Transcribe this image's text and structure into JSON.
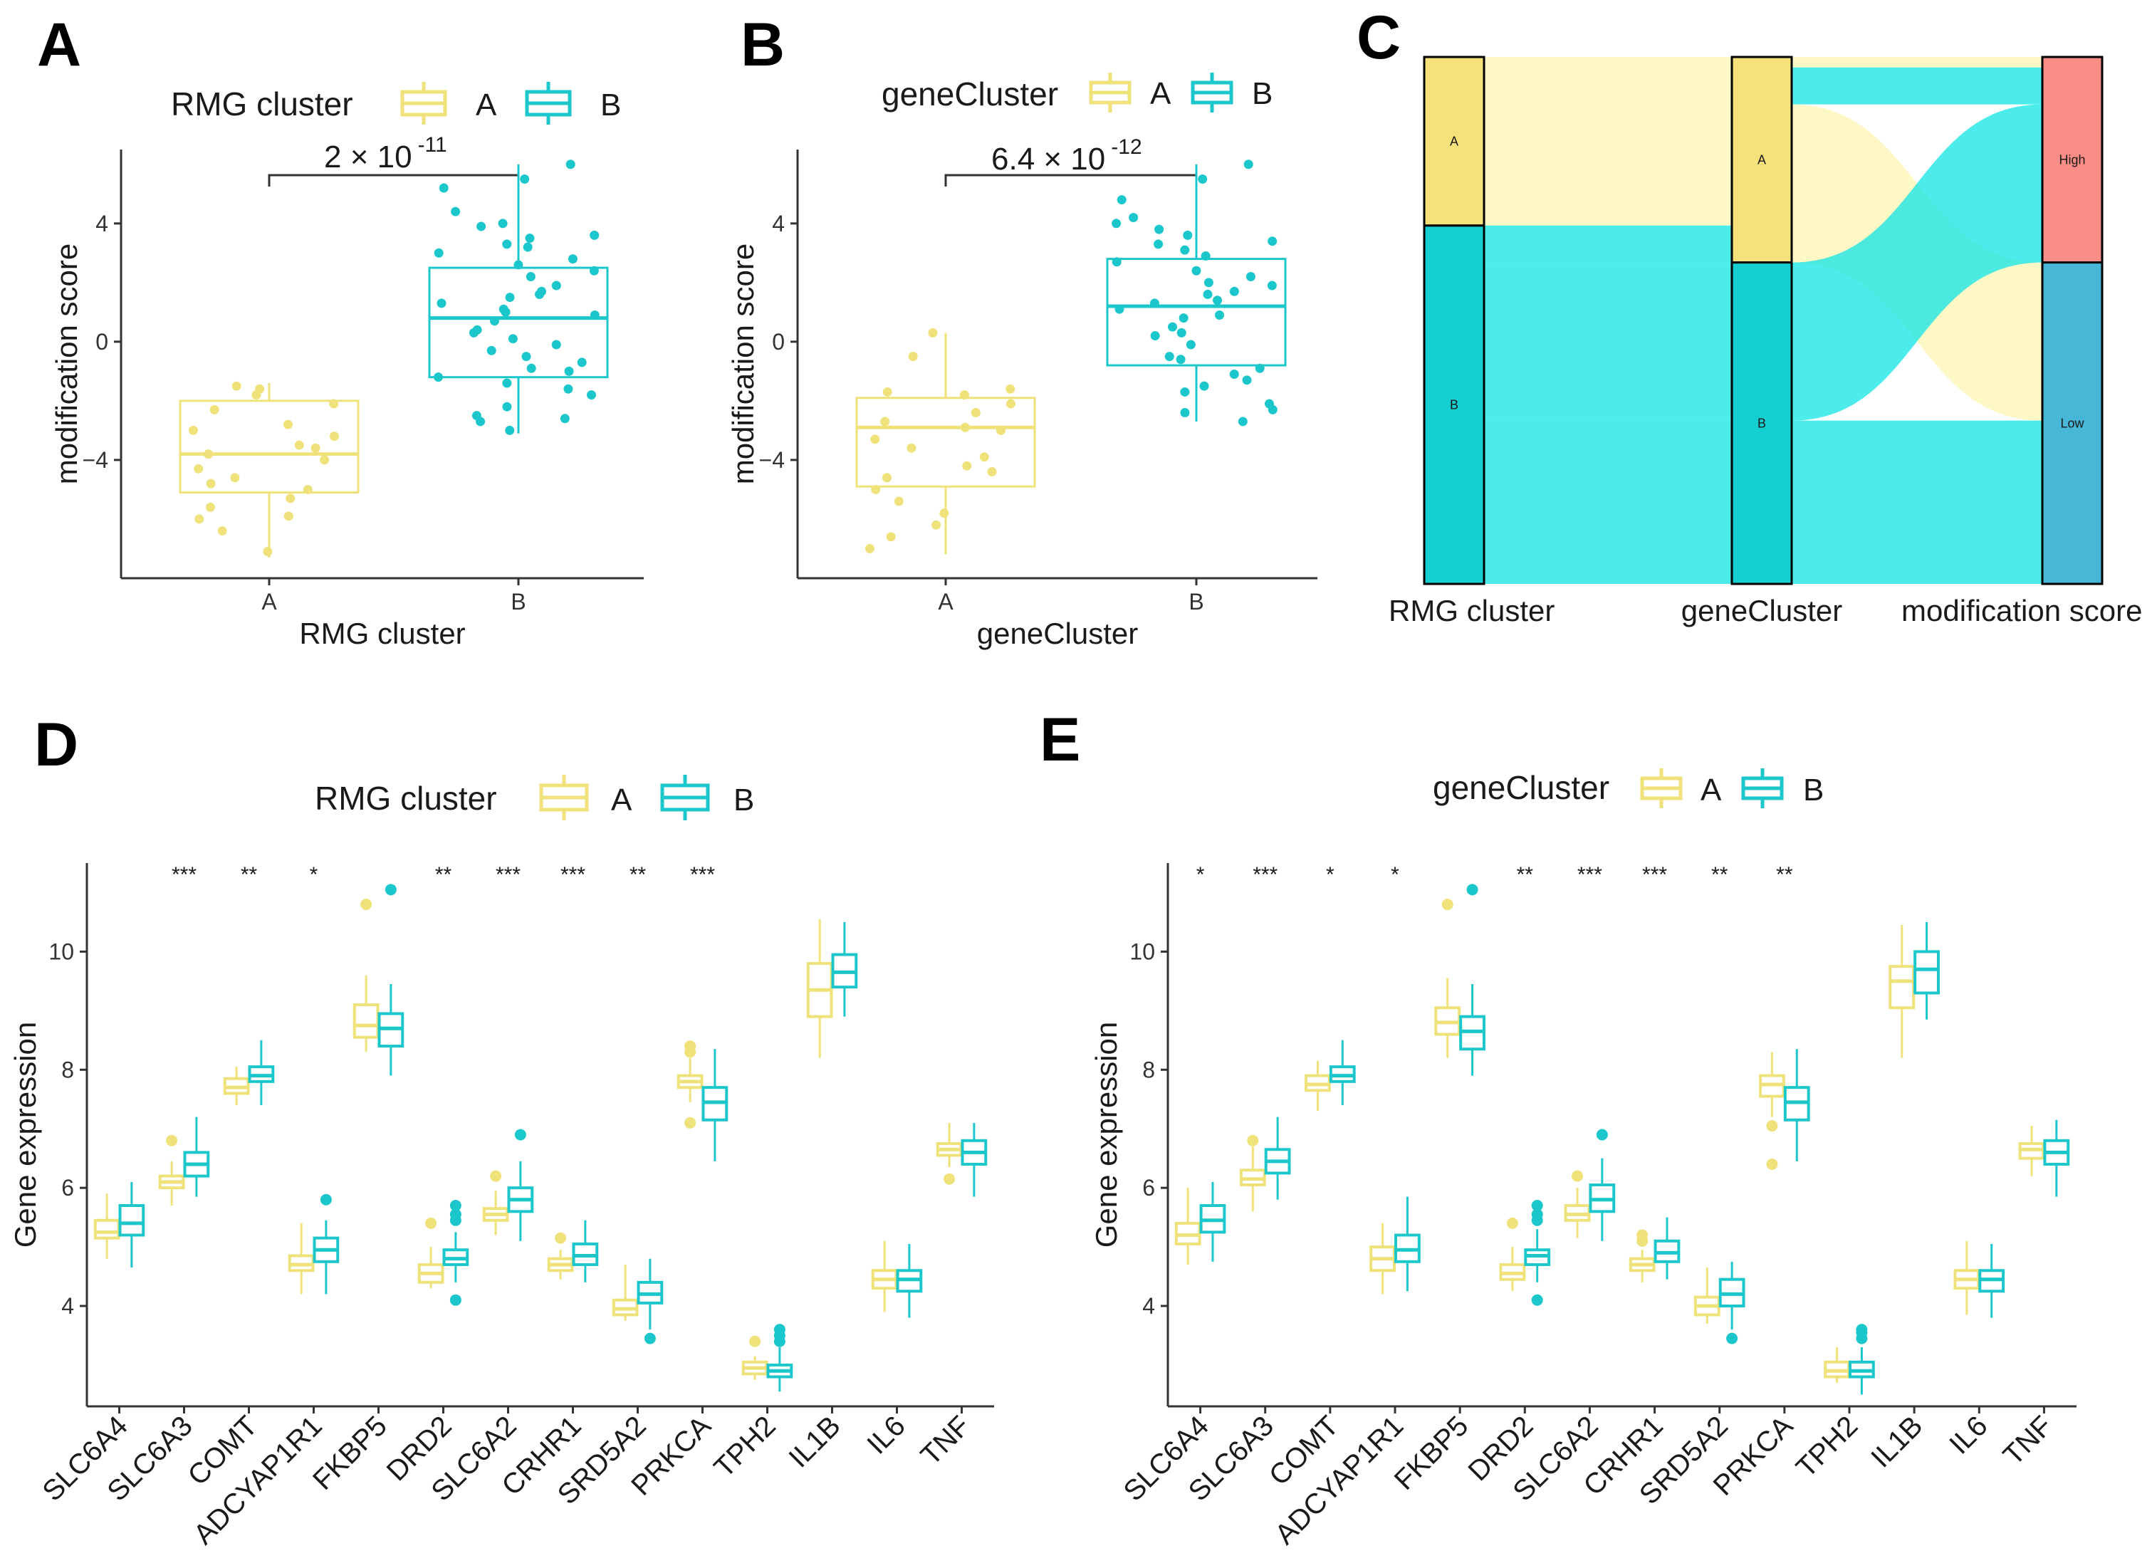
{
  "colors": {
    "A": "#F0E27A",
    "B": "#1CC7CC",
    "high": "#FA8D86",
    "low": "#47B6D7",
    "sankeyA": "#FDF4B3",
    "sankeyB": "#10E6E6"
  },
  "panels": {
    "A": {
      "letter": "A",
      "legend_title": "RMG cluster",
      "legend_A": "A",
      "legend_B": "B",
      "pvalue_base": "2 × 10",
      "pvalue_exp": "-11"
    },
    "B": {
      "letter": "B",
      "legend_title": "geneCluster",
      "legend_A": "A",
      "legend_B": "B",
      "pvalue_base": "6.4 × 10",
      "pvalue_exp": "-12"
    },
    "C": {
      "letter": "C"
    },
    "D": {
      "letter": "D",
      "legend_title": "RMG cluster",
      "legend_A": "A",
      "legend_B": "B"
    },
    "E": {
      "letter": "E",
      "legend_title": "geneCluster",
      "legend_A": "A",
      "legend_B": "B"
    }
  },
  "chart_data": [
    {
      "id": "A",
      "type": "box",
      "xlabel": "RMG cluster",
      "ylabel": "modification score",
      "categories": [
        "A",
        "B"
      ],
      "ylim": [
        -8,
        6.5
      ],
      "yticks": [
        -4,
        0,
        4
      ],
      "yticklabels": [
        "−4",
        "0",
        "4"
      ],
      "boxes": [
        {
          "q1": -5.1,
          "median": -3.8,
          "q3": -2.0,
          "whisker_low": -7.3,
          "whisker_high": -1.4
        },
        {
          "q1": -1.2,
          "median": 0.8,
          "q3": 2.5,
          "whisker_low": -3.1,
          "whisker_high": 6.0
        }
      ],
      "points": [
        [
          -1.8,
          -1.5,
          -2.1,
          -2.8,
          -3.2,
          -3.5,
          -3.8,
          -4.0,
          -4.3,
          -4.6,
          -5.0,
          -5.3,
          -5.6,
          -6.0,
          -6.4,
          -7.1,
          -1.6,
          -2.3,
          -3.0,
          -4.8,
          -5.9,
          -3.6
        ],
        [
          6.0,
          5.5,
          5.2,
          4.4,
          3.9,
          3.6,
          3.3,
          3.0,
          2.6,
          2.2,
          1.9,
          1.6,
          1.3,
          1.0,
          0.7,
          0.4,
          0.1,
          -0.3,
          -0.7,
          -1.0,
          -1.4,
          -1.8,
          -2.2,
          -2.6,
          -3.0,
          2.4,
          1.1,
          -0.5,
          3.2,
          -2.5,
          4.0,
          0.9,
          -1.2,
          2.8,
          1.7,
          -0.1,
          -2.7,
          3.5,
          0.3,
          -1.6,
          1.5,
          -0.9
        ]
      ],
      "pvalue": "2 × 10^-11"
    },
    {
      "id": "B",
      "type": "box",
      "xlabel": "geneCluster",
      "ylabel": "modification score",
      "categories": [
        "A",
        "B"
      ],
      "ylim": [
        -8,
        6.5
      ],
      "yticks": [
        -4,
        0,
        4
      ],
      "yticklabels": [
        "−4",
        "0",
        "4"
      ],
      "boxes": [
        {
          "q1": -4.9,
          "median": -2.9,
          "q3": -1.9,
          "whisker_low": -7.2,
          "whisker_high": 0.3
        },
        {
          "q1": -0.8,
          "median": 1.2,
          "q3": 2.8,
          "whisker_low": -2.7,
          "whisker_high": 6.0
        }
      ],
      "points": [
        [
          0.3,
          -0.5,
          -1.6,
          -1.8,
          -2.1,
          -2.4,
          -2.7,
          -3.0,
          -3.3,
          -3.6,
          -3.9,
          -4.2,
          -4.6,
          -5.0,
          -5.4,
          -5.8,
          -6.2,
          -6.6,
          -7.0,
          -1.7,
          -2.9,
          -4.4
        ],
        [
          6.0,
          5.5,
          4.8,
          4.2,
          3.8,
          3.4,
          3.1,
          2.7,
          2.4,
          2.0,
          1.7,
          1.4,
          1.1,
          0.8,
          0.5,
          0.2,
          -0.1,
          -0.5,
          -0.9,
          -1.3,
          -1.7,
          -2.1,
          -2.4,
          -2.7,
          3.6,
          1.9,
          0.3,
          -1.5,
          2.9,
          1.3,
          -0.6,
          -2.3,
          4.0,
          2.2,
          0.9,
          -1.1,
          3.3,
          1.6
        ]
      ],
      "pvalue": "6.4 × 10^-12"
    },
    {
      "id": "C",
      "type": "alluvial",
      "axes": [
        "RMG cluster",
        "geneCluster",
        "modification score"
      ],
      "nodes": [
        {
          "axis": 0,
          "label": "A",
          "value": 32
        },
        {
          "axis": 0,
          "label": "B",
          "value": 68
        },
        {
          "axis": 1,
          "label": "A",
          "value": 39
        },
        {
          "axis": 1,
          "label": "B",
          "value": 61
        },
        {
          "axis": 2,
          "label": "High",
          "value": 39
        },
        {
          "axis": 2,
          "label": "Low",
          "value": 61
        }
      ],
      "flows": [
        {
          "path": [
            "A",
            "A",
            "High"
          ],
          "value": 2,
          "group": "A"
        },
        {
          "path": [
            "A",
            "A",
            "Low"
          ],
          "value": 30,
          "group": "A"
        },
        {
          "path": [
            "B",
            "A",
            "High"
          ],
          "value": 7,
          "group": "B"
        },
        {
          "path": [
            "B",
            "B",
            "High"
          ],
          "value": 30,
          "group": "B"
        },
        {
          "path": [
            "B",
            "B",
            "Low"
          ],
          "value": 31,
          "group": "B"
        }
      ]
    },
    {
      "id": "D",
      "type": "box",
      "xlabel": "",
      "ylabel": "Gene expression",
      "ylim": [
        2.3,
        11.5
      ],
      "yticks": [
        4,
        6,
        8,
        10
      ],
      "yticklabels": [
        "4",
        "6",
        "8",
        "10"
      ],
      "categories": [
        "SLC6A4",
        "SLC6A3",
        "COMT",
        "ADCYAP1R1",
        "FKBP5",
        "DRD2",
        "SLC6A2",
        "CRHR1",
        "SRD5A2",
        "PRKCA",
        "TPH2",
        "IL1B",
        "IL6",
        "TNF"
      ],
      "significance": [
        "",
        "***",
        "**",
        "*",
        "",
        "**",
        "***",
        "***",
        "**",
        "***",
        "",
        "",
        "",
        ""
      ],
      "series": [
        {
          "name": "A",
          "stats": [
            [
              4.8,
              5.15,
              5.25,
              5.45,
              5.9
            ],
            [
              5.7,
              6.0,
              6.1,
              6.2,
              6.45
            ],
            [
              7.4,
              7.6,
              7.7,
              7.85,
              8.05
            ],
            [
              4.2,
              4.6,
              4.7,
              4.85,
              5.4
            ],
            [
              8.3,
              8.55,
              8.75,
              9.1,
              9.6
            ],
            [
              4.3,
              4.4,
              4.55,
              4.7,
              5.0
            ],
            [
              5.2,
              5.45,
              5.55,
              5.65,
              5.95
            ],
            [
              4.45,
              4.6,
              4.7,
              4.8,
              4.95
            ],
            [
              3.75,
              3.85,
              3.95,
              4.1,
              4.7
            ],
            [
              7.45,
              7.7,
              7.8,
              7.9,
              8.2
            ],
            [
              2.75,
              2.85,
              2.95,
              3.05,
              3.15
            ],
            [
              8.2,
              8.9,
              9.35,
              9.8,
              10.55
            ],
            [
              3.9,
              4.3,
              4.45,
              4.6,
              5.1
            ],
            [
              6.35,
              6.55,
              6.65,
              6.75,
              7.1
            ]
          ],
          "outliers": [
            [],
            [
              6.8
            ],
            [],
            [],
            [
              10.8
            ],
            [
              5.4
            ],
            [
              6.2
            ],
            [
              5.15
            ],
            [],
            [
              7.1,
              8.3,
              8.4
            ],
            [
              3.4
            ],
            [],
            [],
            [
              6.15
            ]
          ]
        },
        {
          "name": "B",
          "stats": [
            [
              4.65,
              5.2,
              5.4,
              5.7,
              6.1
            ],
            [
              5.85,
              6.2,
              6.4,
              6.6,
              7.2
            ],
            [
              7.4,
              7.8,
              7.9,
              8.05,
              8.5
            ],
            [
              4.2,
              4.75,
              4.95,
              5.15,
              5.45
            ],
            [
              7.9,
              8.4,
              8.7,
              8.95,
              9.45
            ],
            [
              4.4,
              4.7,
              4.8,
              4.95,
              5.25
            ],
            [
              5.1,
              5.6,
              5.8,
              6.0,
              6.45
            ],
            [
              4.4,
              4.7,
              4.85,
              5.05,
              5.45
            ],
            [
              3.6,
              4.05,
              4.2,
              4.4,
              4.8
            ],
            [
              6.45,
              7.15,
              7.45,
              7.7,
              8.35
            ],
            [
              2.55,
              2.8,
              2.9,
              3.0,
              3.3
            ],
            [
              8.9,
              9.4,
              9.65,
              9.95,
              10.5
            ],
            [
              3.8,
              4.25,
              4.45,
              4.6,
              5.05
            ],
            [
              5.85,
              6.4,
              6.6,
              6.8,
              7.1
            ]
          ],
          "outliers": [
            [],
            [],
            [],
            [
              5.8
            ],
            [
              11.05
            ],
            [
              4.1,
              5.45,
              5.55,
              5.7
            ],
            [
              6.9
            ],
            [],
            [
              3.45
            ],
            [],
            [
              3.4,
              3.5,
              3.6
            ],
            [],
            [],
            []
          ]
        }
      ]
    },
    {
      "id": "E",
      "type": "box",
      "xlabel": "",
      "ylabel": "Gene expression",
      "ylim": [
        2.3,
        11.5
      ],
      "yticks": [
        4,
        6,
        8,
        10
      ],
      "yticklabels": [
        "4",
        "6",
        "8",
        "10"
      ],
      "categories": [
        "SLC6A4",
        "SLC6A3",
        "COMT",
        "ADCYAP1R1",
        "FKBP5",
        "DRD2",
        "SLC6A2",
        "CRHR1",
        "SRD5A2",
        "PRKCA",
        "TPH2",
        "IL1B",
        "IL6",
        "TNF"
      ],
      "significance": [
        "*",
        "***",
        "*",
        "*",
        "",
        "**",
        "***",
        "***",
        "**",
        "**",
        "",
        "",
        "",
        ""
      ],
      "series": [
        {
          "name": "A",
          "stats": [
            [
              4.7,
              5.05,
              5.2,
              5.4,
              6.0
            ],
            [
              5.6,
              6.05,
              6.15,
              6.3,
              6.7
            ],
            [
              7.3,
              7.65,
              7.75,
              7.9,
              8.15
            ],
            [
              4.2,
              4.6,
              4.8,
              5.0,
              5.4
            ],
            [
              8.2,
              8.6,
              8.8,
              9.05,
              9.55
            ],
            [
              4.25,
              4.45,
              4.55,
              4.7,
              5.0
            ],
            [
              5.15,
              5.45,
              5.55,
              5.7,
              6.0
            ],
            [
              4.4,
              4.6,
              4.7,
              4.8,
              4.95
            ],
            [
              3.7,
              3.85,
              4.0,
              4.15,
              4.65
            ],
            [
              7.2,
              7.55,
              7.75,
              7.9,
              8.3
            ],
            [
              2.7,
              2.8,
              2.9,
              3.05,
              3.3
            ],
            [
              8.2,
              9.05,
              9.5,
              9.75,
              10.45
            ],
            [
              3.85,
              4.3,
              4.45,
              4.6,
              5.1
            ],
            [
              6.2,
              6.5,
              6.65,
              6.75,
              7.05
            ]
          ],
          "outliers": [
            [],
            [
              6.8
            ],
            [],
            [],
            [
              10.8
            ],
            [
              5.4
            ],
            [
              6.2
            ],
            [
              5.1,
              5.2
            ],
            [],
            [
              6.4,
              7.05
            ],
            [],
            [],
            [],
            []
          ]
        },
        {
          "name": "B",
          "stats": [
            [
              4.75,
              5.25,
              5.45,
              5.7,
              6.1
            ],
            [
              5.8,
              6.25,
              6.45,
              6.65,
              7.2
            ],
            [
              7.4,
              7.8,
              7.9,
              8.05,
              8.5
            ],
            [
              4.25,
              4.75,
              4.95,
              5.2,
              5.85
            ],
            [
              7.9,
              8.35,
              8.65,
              8.9,
              9.45
            ],
            [
              4.4,
              4.7,
              4.85,
              4.95,
              5.3
            ],
            [
              5.1,
              5.6,
              5.8,
              6.05,
              6.5
            ],
            [
              4.45,
              4.75,
              4.9,
              5.1,
              5.5
            ],
            [
              3.6,
              4.0,
              4.2,
              4.45,
              4.75
            ],
            [
              6.45,
              7.15,
              7.45,
              7.7,
              8.35
            ],
            [
              2.5,
              2.8,
              2.9,
              3.05,
              3.3
            ],
            [
              8.85,
              9.3,
              9.7,
              10.0,
              10.5
            ],
            [
              3.8,
              4.25,
              4.45,
              4.6,
              5.05
            ],
            [
              5.85,
              6.4,
              6.6,
              6.8,
              7.15
            ]
          ],
          "outliers": [
            [],
            [],
            [],
            [],
            [
              11.05
            ],
            [
              4.1,
              5.45,
              5.55,
              5.7
            ],
            [
              6.9
            ],
            [],
            [
              3.45
            ],
            [],
            [
              3.45,
              3.55,
              3.6
            ],
            [],
            [],
            []
          ]
        }
      ]
    }
  ]
}
